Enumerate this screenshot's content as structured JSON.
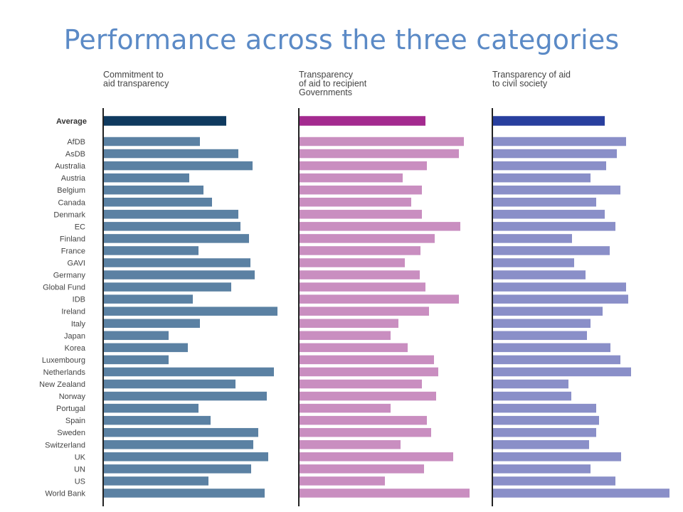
{
  "page": {
    "title": "Performance across the three categories"
  },
  "chart_data": {
    "type": "bar",
    "orientation": "horizontal",
    "average_label": "Average",
    "categories": [
      "AfDB",
      "AsDB",
      "Australia",
      "Austria",
      "Belgium",
      "Canada",
      "Denmark",
      "EC",
      "Finland",
      "France",
      "GAVI",
      "Germany",
      "Global Fund",
      "IDB",
      "Ireland",
      "Italy",
      "Japan",
      "Korea",
      "Luxembourg",
      "Netherlands",
      "New Zealand",
      "Norway",
      "Portugal",
      "Spain",
      "Sweden",
      "Switzerland",
      "UK",
      "UN",
      "US",
      "World Bank"
    ],
    "series": [
      {
        "name": "Commitment to aid transparency",
        "color": "#5b81a3",
        "average_color": "#0f3a5f",
        "average": 173,
        "values": [
          136,
          190,
          210,
          121,
          141,
          153,
          190,
          193,
          205,
          134,
          207,
          213,
          180,
          126,
          245,
          136,
          92,
          119,
          92,
          240,
          186,
          230,
          134,
          151,
          218,
          211,
          232,
          208,
          148,
          227
        ]
      },
      {
        "name": "Transparency of aid to recipient Governments",
        "color": "#c98ec0",
        "average_color": "#a42a8f",
        "average": 178,
        "values": [
          232,
          225,
          180,
          146,
          173,
          158,
          173,
          227,
          191,
          171,
          149,
          170,
          178,
          225,
          183,
          140,
          129,
          153,
          190,
          196,
          173,
          193,
          129,
          180,
          186,
          143,
          217,
          176,
          121,
          240
        ]
      },
      {
        "name": "Transparency of aid to civil society",
        "color": "#8a8fc8",
        "average_color": "#283f9e",
        "average": 158,
        "values": [
          188,
          175,
          160,
          138,
          180,
          146,
          158,
          173,
          112,
          165,
          115,
          131,
          188,
          191,
          155,
          138,
          133,
          166,
          180,
          195,
          107,
          111,
          146,
          150,
          146,
          136,
          181,
          138,
          173,
          249
        ]
      }
    ]
  }
}
